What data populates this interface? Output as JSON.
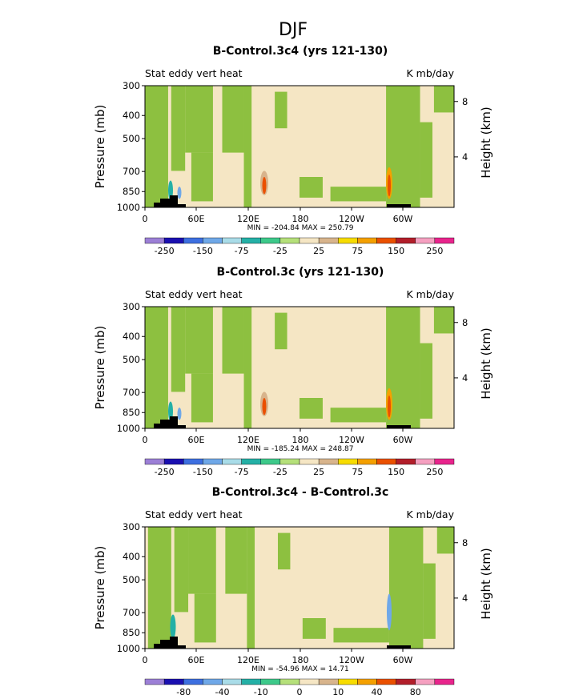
{
  "page_title": "DJF",
  "colors": {
    "field": "#f5e6c4",
    "green": "#8dc040",
    "axis": "#000000",
    "terrain": "#000000"
  },
  "chart_data": [
    {
      "type": "heatmap",
      "title": "B-Control.3c4 (yrs 121-130)",
      "left_label": "Stat eddy vert heat",
      "right_label": "K mb/day",
      "xlabel": "",
      "ylabel": "Pressure (mb)",
      "ylabel_right": "Height (km)",
      "xticks": [
        "0",
        "60E",
        "120E",
        "180",
        "120W",
        "60W"
      ],
      "yticks": [
        "300",
        "400",
        "500",
        "700",
        "850",
        "1000"
      ],
      "height_ticks": [
        "8",
        "4"
      ],
      "stats": "MIN = -204.84   MAX = 250.79",
      "colorbar_labels": [
        "-250",
        "-150",
        "-75",
        "-25",
        "25",
        "75",
        "150",
        "250"
      ],
      "colorbar_colors": [
        "#9c7fd6",
        "#1a0fb0",
        "#3d6fe0",
        "#6fa8e8",
        "#a9dce8",
        "#24b0a6",
        "#3dc98a",
        "#b5e07a",
        "#f5e6c4",
        "#d8b48c",
        "#f7dc00",
        "#f4a000",
        "#ea5000",
        "#b21e2a",
        "#f5a0c0",
        "#e8248c"
      ],
      "min": -204.84,
      "max": 250.79
    },
    {
      "type": "heatmap",
      "title": "B-Control.3c (yrs 121-130)",
      "left_label": "Stat eddy vert heat",
      "right_label": "K mb/day",
      "xlabel": "",
      "ylabel": "Pressure (mb)",
      "ylabel_right": "Height (km)",
      "xticks": [
        "0",
        "60E",
        "120E",
        "180",
        "120W",
        "60W"
      ],
      "yticks": [
        "300",
        "400",
        "500",
        "700",
        "850",
        "1000"
      ],
      "height_ticks": [
        "8",
        "4"
      ],
      "stats": "MIN = -185.24   MAX = 248.87",
      "colorbar_labels": [
        "-250",
        "-150",
        "-75",
        "-25",
        "25",
        "75",
        "150",
        "250"
      ],
      "colorbar_colors": [
        "#9c7fd6",
        "#1a0fb0",
        "#3d6fe0",
        "#6fa8e8",
        "#a9dce8",
        "#24b0a6",
        "#3dc98a",
        "#b5e07a",
        "#f5e6c4",
        "#d8b48c",
        "#f7dc00",
        "#f4a000",
        "#ea5000",
        "#b21e2a",
        "#f5a0c0",
        "#e8248c"
      ],
      "min": -185.24,
      "max": 248.87
    },
    {
      "type": "heatmap",
      "title": "B-Control.3c4 - B-Control.3c",
      "left_label": "Stat eddy vert heat",
      "right_label": "K mb/day",
      "xlabel": "",
      "ylabel": "Pressure (mb)",
      "ylabel_right": "Height (km)",
      "xticks": [
        "0",
        "60E",
        "120E",
        "180",
        "120W",
        "60W"
      ],
      "yticks": [
        "300",
        "400",
        "500",
        "700",
        "850",
        "1000"
      ],
      "height_ticks": [
        "8",
        "4"
      ],
      "stats": "MIN = -54.96   MAX = 14.71",
      "colorbar_labels": [
        "-80",
        "-40",
        "-10",
        "0",
        "10",
        "40",
        "80"
      ],
      "colorbar_colors": [
        "#9c7fd6",
        "#1a0fb0",
        "#3d6fe0",
        "#6fa8e8",
        "#a9dce8",
        "#24b0a6",
        "#3dc98a",
        "#b5e07a",
        "#f5e6c4",
        "#d8b48c",
        "#f7dc00",
        "#f4a000",
        "#ea5000",
        "#b21e2a",
        "#f5a0c0",
        "#e8248c"
      ],
      "min": -54.96,
      "max": 14.71
    }
  ]
}
